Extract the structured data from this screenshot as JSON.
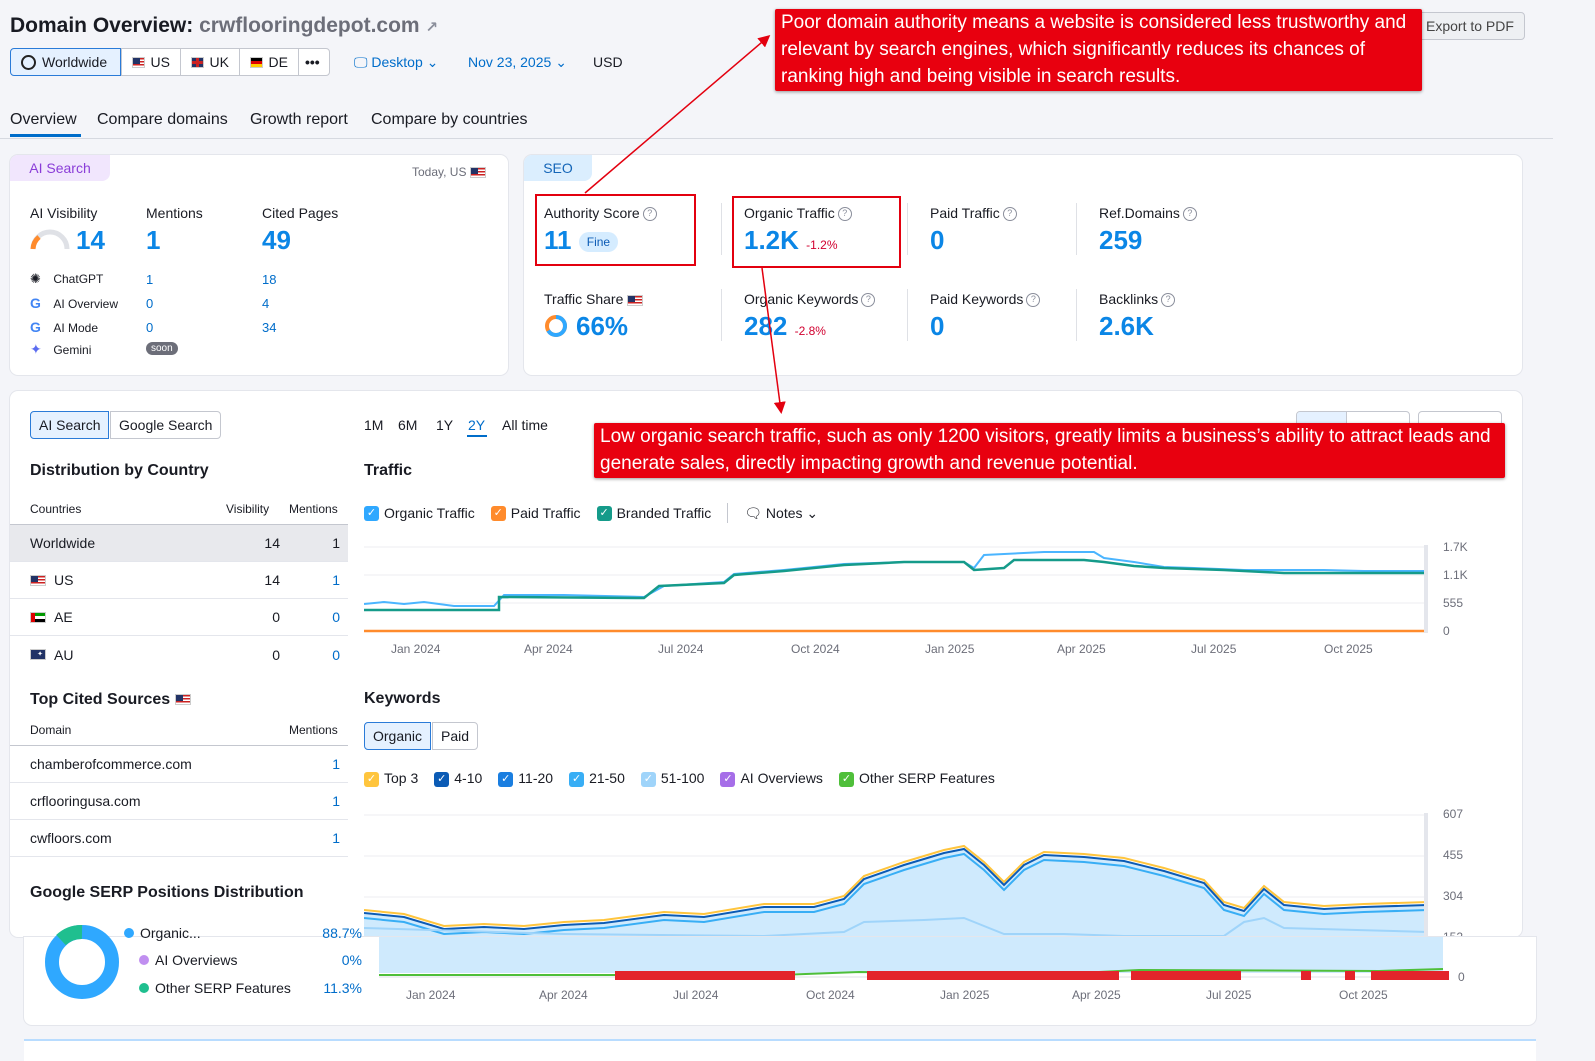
{
  "header": {
    "title_prefix": "Domain Overview:",
    "domain": "crwflooringdepot.com",
    "export_pdf": "Export to PDF"
  },
  "region_buttons": [
    {
      "label": "Worldwide"
    },
    {
      "label": "US"
    },
    {
      "label": "UK"
    },
    {
      "label": "DE"
    }
  ],
  "more_label": "•••",
  "device": "Desktop",
  "date": "Nov 23, 2025",
  "currency": "USD",
  "tabs": [
    "Overview",
    "Compare domains",
    "Growth report",
    "Compare by countries"
  ],
  "ai_card": {
    "badge": "AI Search",
    "date_label": "Today, US",
    "cols": [
      "AI Visibility",
      "Mentions",
      "Cited Pages"
    ],
    "visibility": "14",
    "mentions": "1",
    "cited": "49",
    "platforms": [
      {
        "name": "ChatGPT",
        "mentions": "1",
        "cited": "18"
      },
      {
        "name": "AI Overview",
        "mentions": "0",
        "cited": "4"
      },
      {
        "name": "AI Mode",
        "mentions": "0",
        "cited": "34"
      },
      {
        "name": "Gemini",
        "mentions": "soon",
        "cited": ""
      }
    ]
  },
  "seo_card": {
    "badge": "SEO",
    "authority_label": "Authority Score",
    "authority_value": "11",
    "authority_pill": "Fine",
    "organic_label": "Organic Traffic",
    "organic_value": "1.2K",
    "organic_delta": "-1.2%",
    "paid_traffic_label": "Paid Traffic",
    "paid_traffic_value": "0",
    "refdomains_label": "Ref.Domains",
    "refdomains_value": "259",
    "share_label": "Traffic Share",
    "share_value": "66%",
    "share_fraction": 0.66,
    "okw_label": "Organic Keywords",
    "okw_value": "282",
    "okw_delta": "-2.8%",
    "pkw_label": "Paid Keywords",
    "pkw_value": "0",
    "backlinks_label": "Backlinks",
    "backlinks_value": "2.6K"
  },
  "left_panel": {
    "toggle": [
      "AI Search",
      "Google Search"
    ],
    "dist_title": "Distribution by Country",
    "dist_headers": [
      "Countries",
      "Visibility",
      "Mentions"
    ],
    "countries": [
      {
        "name": "Worldwide",
        "visibility": "14",
        "mentions": "1"
      },
      {
        "name": "US",
        "visibility": "14",
        "mentions": "1"
      },
      {
        "name": "AE",
        "visibility": "0",
        "mentions": "0"
      },
      {
        "name": "AU",
        "visibility": "0",
        "mentions": "0"
      }
    ],
    "cited_title": "Top Cited Sources",
    "cited_headers": [
      "Domain",
      "Mentions"
    ],
    "sources": [
      {
        "domain": "chamberofcommerce.com",
        "mentions": "1"
      },
      {
        "domain": "crflooringusa.com",
        "mentions": "1"
      },
      {
        "domain": "cwfloors.com",
        "mentions": "1"
      }
    ],
    "serp_title": "Google SERP Positions Distribution",
    "serp_items": [
      {
        "name": "Organic...",
        "value": "88.7%",
        "color": "#2fa8ff"
      },
      {
        "name": "AI Overviews",
        "value": "0%",
        "color": "#c08ff0"
      },
      {
        "name": "Other SERP Features",
        "value": "11.3%",
        "color": "#1fbf8f"
      }
    ]
  },
  "periods": [
    "1M",
    "6M",
    "1Y",
    "2Y",
    "All time"
  ],
  "traffic": {
    "title": "Traffic",
    "legend": [
      "Organic Traffic",
      "Paid Traffic",
      "Branded Traffic"
    ],
    "notes": "Notes",
    "y_ticks": [
      "1.7K",
      "1.1K",
      "555",
      "0"
    ],
    "x_ticks": [
      "Jan 2024",
      "Apr 2024",
      "Jul 2024",
      "Oct 2024",
      "Jan 2025",
      "Apr 2025",
      "Jul 2025",
      "Oct 2025"
    ]
  },
  "keywords": {
    "title": "Keywords",
    "toggle": [
      "Organic",
      "Paid"
    ],
    "legend": [
      "Top 3",
      "4-10",
      "11-20",
      "21-50",
      "51-100",
      "AI Overviews",
      "Other SERP Features"
    ],
    "y_ticks": [
      "607",
      "455",
      "304",
      "152",
      "0"
    ],
    "x_ticks": [
      "Jan 2024",
      "Apr 2024",
      "Jul 2024",
      "Oct 2024",
      "Jan 2025",
      "Apr 2025",
      "Jul 2025",
      "Oct 2025"
    ]
  },
  "callouts": {
    "authority": "Poor domain authority means a website is considered less trustworthy and relevant by search engines, which significantly reduces its chances of ranking high and being visible in search results.",
    "traffic": "Low organic search traffic, such as only 1200 visitors, greatly limits a business’s ability to attract leads and generate sales, directly impacting growth and revenue potential."
  },
  "colors": {
    "accent": "#0b86e6",
    "organic": "#1a9cf0",
    "branded": "#159b8a",
    "paid": "#ff8b2c",
    "callout": "#e8000f"
  }
}
